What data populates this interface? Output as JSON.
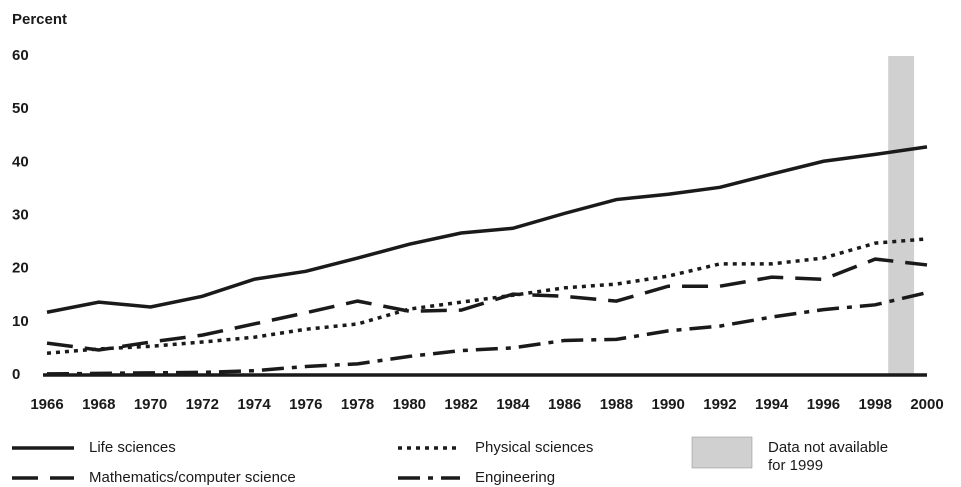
{
  "chart_data": {
    "type": "line",
    "y_label": "Percent",
    "x": [
      1966,
      1968,
      1970,
      1972,
      1974,
      1976,
      1978,
      1980,
      1982,
      1984,
      1986,
      1988,
      1990,
      1992,
      1994,
      1996,
      1998,
      2000
    ],
    "series": [
      {
        "name": "Life sciences",
        "color": "#1a1a1a",
        "style": "solid",
        "values": [
          11.8,
          13.7,
          12.8,
          14.8,
          18,
          19.5,
          22,
          24.6,
          26.7,
          27.6,
          30.4,
          33,
          34,
          35.3,
          37.8,
          40.2,
          41.5,
          42.9
        ]
      },
      {
        "name": "Physical sciences",
        "color": "#1a1a1a",
        "style": "dotted",
        "values": [
          4.1,
          4.9,
          5.4,
          6.2,
          7.1,
          8.6,
          9.6,
          12.4,
          13.7,
          15,
          16.4,
          17.1,
          18.6,
          20.9,
          20.9,
          22,
          24.8,
          25.6
        ]
      },
      {
        "name": "Mathematics/computer science",
        "color": "#1a1a1a",
        "style": "dashed",
        "values": [
          6,
          4.7,
          6.2,
          7.5,
          9.6,
          11.7,
          13.9,
          12,
          12.2,
          15.2,
          14.8,
          13.9,
          16.7,
          16.7,
          18.4,
          18,
          21.8,
          20.7
        ]
      },
      {
        "name": "Engineering",
        "color": "#1a1a1a",
        "style": "dashdot",
        "values": [
          0.2,
          0.3,
          0.4,
          0.5,
          0.8,
          1.6,
          2.1,
          3.5,
          4.6,
          5.1,
          6.5,
          6.7,
          8.3,
          9.2,
          10.9,
          12.3,
          13.2,
          15.5
        ]
      }
    ],
    "shaded_band": {
      "x": [
        1998.5,
        1999.5
      ],
      "color": "#d0d0d0",
      "label": [
        "Data not available",
        "for 1999"
      ]
    },
    "xlim": [
      1966,
      2000
    ],
    "xticks": [
      1966,
      1968,
      1970,
      1972,
      1974,
      1976,
      1978,
      1980,
      1982,
      1984,
      1986,
      1988,
      1990,
      1992,
      1994,
      1996,
      1998,
      2000
    ],
    "ylim": [
      0,
      60
    ],
    "yticks": [
      0,
      10,
      20,
      30,
      40,
      50,
      60
    ],
    "grid": false
  }
}
